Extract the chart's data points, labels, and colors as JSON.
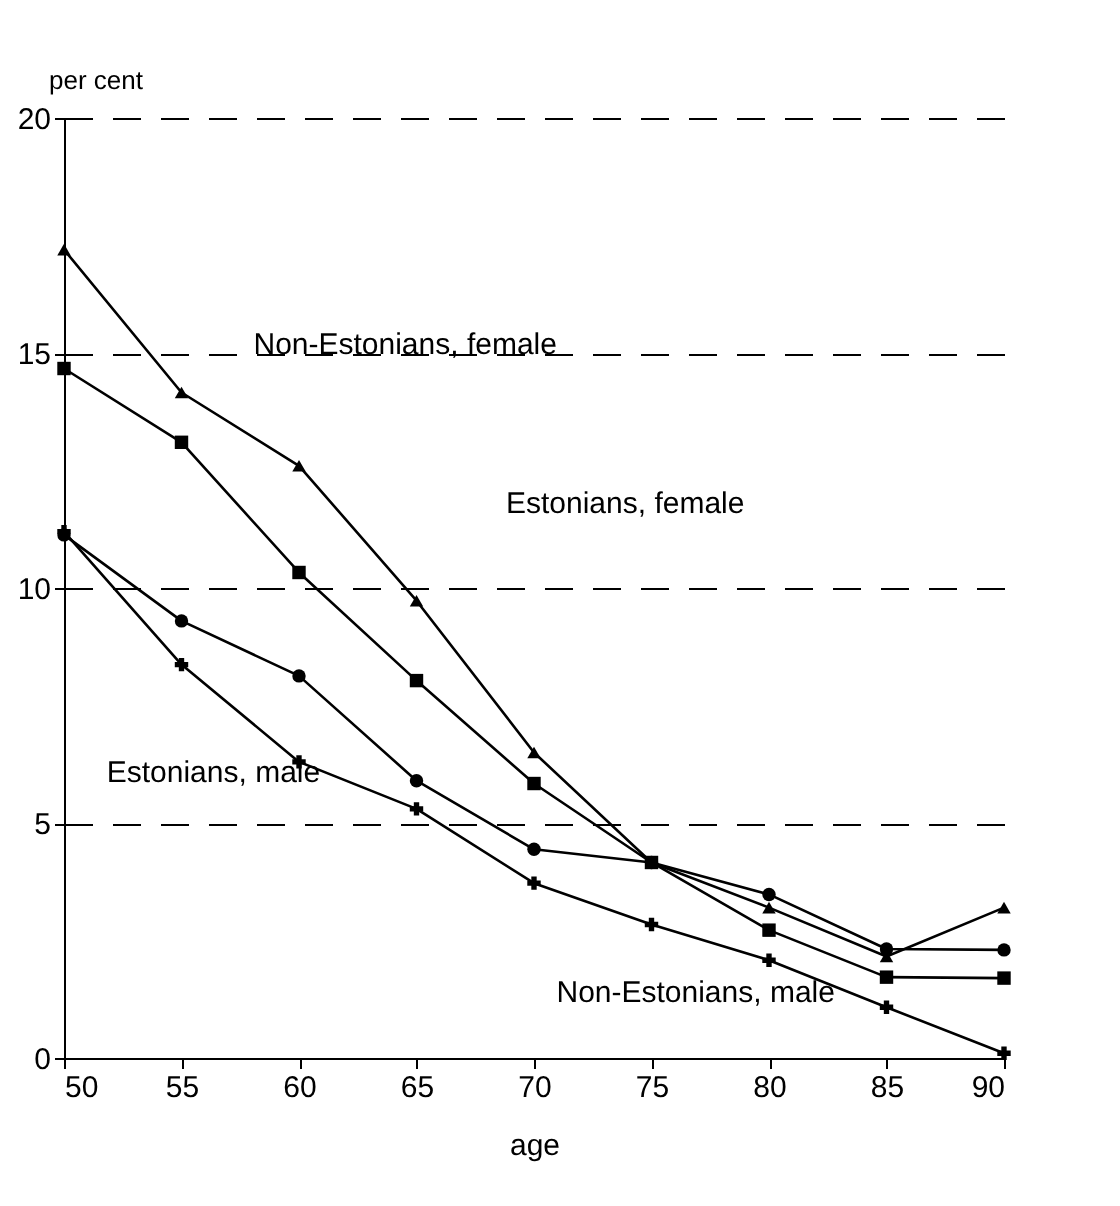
{
  "chart_data": {
    "type": "line",
    "xlabel": "age",
    "ylabel": "per cent",
    "x": [
      50,
      55,
      60,
      65,
      70,
      75,
      80,
      85,
      90
    ],
    "series": [
      {
        "color": "#000000",
        "marker": "triangle",
        "values": [
          17.2,
          14.16,
          12.6,
          9.73,
          6.5,
          4.16,
          3.2,
          2.16,
          3.2
        ]
      },
      {
        "color": "#000000",
        "marker": "square",
        "values": [
          14.67,
          13.1,
          10.33,
          8.03,
          5.84,
          4.16,
          2.72,
          1.72,
          1.7
        ]
      },
      {
        "color": "#000000",
        "marker": "circle",
        "values": [
          11.13,
          9.3,
          8.13,
          5.9,
          4.44,
          4.16,
          3.48,
          2.32,
          2.3
        ]
      },
      {
        "color": "#000000",
        "marker": "cross",
        "values": [
          11.2,
          8.37,
          6.3,
          5.3,
          3.72,
          2.84,
          2.08,
          1.08,
          0.1
        ]
      }
    ],
    "xlim": [
      50,
      90
    ],
    "xticks": [
      50,
      55,
      60,
      65,
      70,
      75,
      80,
      85,
      90
    ],
    "ylim": [
      0,
      20
    ],
    "yticks": [
      0,
      5,
      10,
      15,
      20
    ],
    "grid": "y",
    "line_style": "solid",
    "annotations": [
      "Non-Estonians, female",
      "Estonians, female",
      "Estonians, male",
      "Non-Estonians, male"
    ]
  }
}
